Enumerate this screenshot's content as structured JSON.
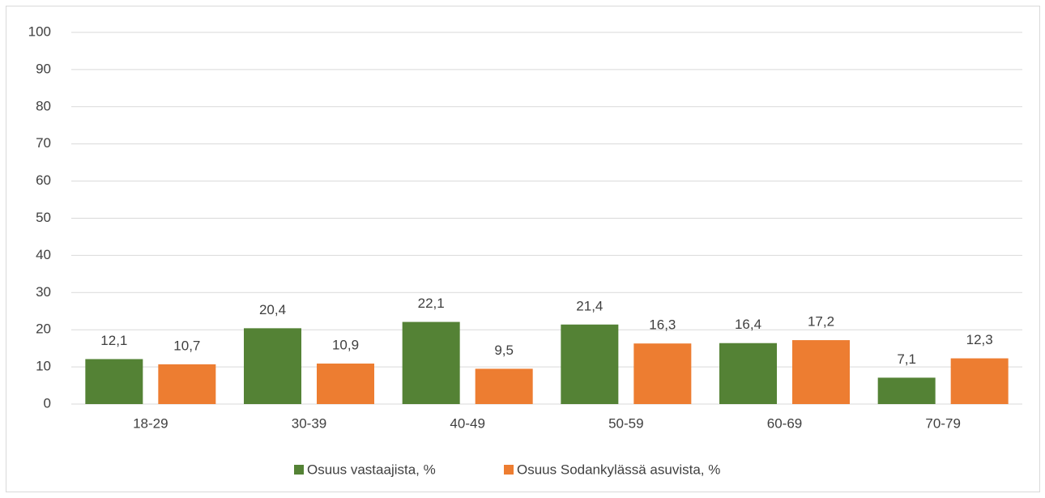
{
  "chart_data": {
    "type": "bar",
    "categories": [
      "18-29",
      "30-39",
      "40-49",
      "50-59",
      "60-69",
      "70-79"
    ],
    "series": [
      {
        "name": "Osuus vastaajista, %",
        "color": "#548235",
        "values": [
          12.1,
          20.4,
          22.1,
          21.4,
          16.4,
          7.1
        ],
        "value_labels": [
          "12,1",
          "20,4",
          "22,1",
          "21,4",
          "16,4",
          "7,1"
        ]
      },
      {
        "name": "Osuus Sodankylässä asuvista, %",
        "color": "#ed7d31",
        "values": [
          10.7,
          10.9,
          9.5,
          16.3,
          17.2,
          12.3
        ],
        "value_labels": [
          "10,7",
          "10,9",
          "9,5",
          "16,3",
          "17,2",
          "12,3"
        ]
      }
    ],
    "ylim": [
      0,
      100
    ],
    "yticks": [
      0,
      10,
      20,
      30,
      40,
      50,
      60,
      70,
      80,
      90,
      100
    ],
    "grid": true,
    "legend": "bottom"
  }
}
